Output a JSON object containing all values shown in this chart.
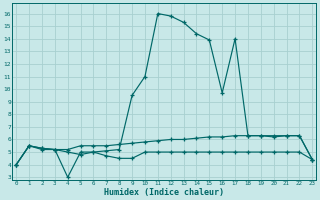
{
  "xlabel": "Humidex (Indice chaleur)",
  "bg_color": "#c8e8e8",
  "grid_color": "#a8d0d0",
  "line_color": "#006868",
  "x_ticks": [
    0,
    1,
    2,
    3,
    4,
    5,
    6,
    7,
    8,
    9,
    10,
    11,
    12,
    13,
    14,
    15,
    16,
    17,
    18,
    19,
    20,
    21,
    22,
    23
  ],
  "y_ticks": [
    3,
    4,
    5,
    6,
    7,
    8,
    9,
    10,
    11,
    12,
    13,
    14,
    15,
    16
  ],
  "ylim": [
    2.8,
    16.8
  ],
  "xlim": [
    -0.3,
    23.3
  ],
  "line1_x": [
    0,
    1,
    2,
    3,
    4,
    5,
    6,
    7,
    8,
    9,
    10,
    11,
    12,
    13,
    14,
    15,
    16,
    17,
    18,
    19,
    20,
    21,
    22,
    23
  ],
  "line1_y": [
    4.0,
    5.5,
    5.2,
    5.2,
    3.0,
    5.0,
    5.0,
    5.1,
    5.2,
    9.5,
    11.0,
    16.0,
    15.8,
    15.3,
    14.4,
    13.9,
    9.7,
    14.0,
    6.3,
    6.3,
    6.2,
    6.3,
    6.3,
    4.4
  ],
  "line2_x": [
    0,
    1,
    2,
    3,
    4,
    5,
    6,
    7,
    8,
    9,
    10,
    11,
    12,
    13,
    14,
    15,
    16,
    17,
    18,
    19,
    20,
    21,
    22,
    23
  ],
  "line2_y": [
    4.0,
    5.5,
    5.3,
    5.2,
    5.2,
    5.5,
    5.5,
    5.5,
    5.6,
    5.7,
    5.8,
    5.9,
    6.0,
    6.0,
    6.1,
    6.2,
    6.2,
    6.3,
    6.3,
    6.3,
    6.3,
    6.3,
    6.3,
    4.4
  ],
  "line3_x": [
    0,
    1,
    2,
    3,
    4,
    5,
    6,
    7,
    8,
    9,
    10,
    11,
    12,
    13,
    14,
    15,
    16,
    17,
    18,
    19,
    20,
    21,
    22,
    23
  ],
  "line3_y": [
    4.0,
    5.5,
    5.3,
    5.2,
    5.0,
    4.8,
    5.0,
    4.7,
    4.5,
    4.5,
    5.0,
    5.0,
    5.0,
    5.0,
    5.0,
    5.0,
    5.0,
    5.0,
    5.0,
    5.0,
    5.0,
    5.0,
    5.0,
    4.4
  ]
}
